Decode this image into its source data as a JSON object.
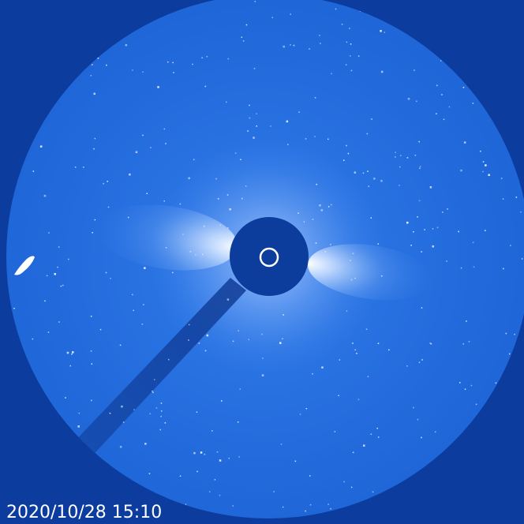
{
  "timestamp": "2020/10/28 15:10"
}
